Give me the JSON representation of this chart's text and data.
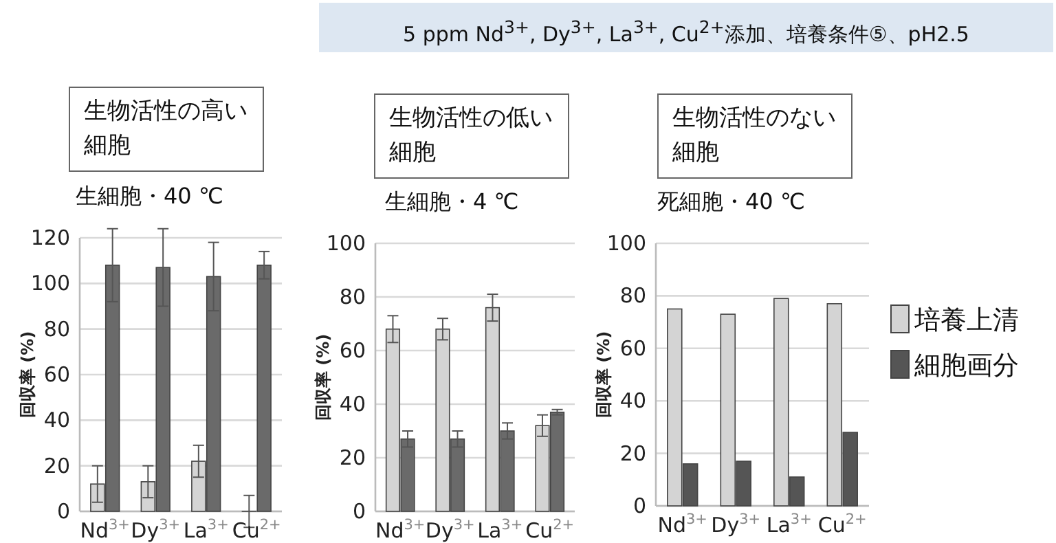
{
  "chart_data": [
    {
      "type": "bar",
      "title": "生物活性の高い細胞",
      "subtitle": "生細胞・40 ℃",
      "ylabel": "回収率 (%)",
      "annotations": [
        "5 ppm Nd$^{3+}$, Dy$^{3+}$, La$^{3+}$, Cu$^{2+}$添加、培養条件⑤、pH2.5"
      ],
      "categories": [
        "Nd$^{3+}$",
        "Dy$^{3+}$",
        "La$^{3+}$",
        "Cu$^{2+}$"
      ],
      "ylim": [
        0,
        120
      ],
      "yticks": [
        0,
        20,
        40,
        60,
        80,
        100,
        120
      ],
      "grid": "y",
      "series": [
        {
          "color": "#d4d4d4",
          "values": [
            12,
            13,
            22,
            0
          ],
          "errors": [
            8,
            7,
            7,
            7
          ]
        },
        {
          "color": "#6a6a6a",
          "values": [
            108,
            107,
            103,
            108
          ],
          "errors": [
            16,
            17,
            15,
            6
          ]
        }
      ]
    },
    {
      "type": "bar",
      "title": "生物活性の低い細胞",
      "subtitle": "生細胞・4 ℃",
      "ylabel": "回収率 (%)",
      "categories": [
        "Nd$^{3+}$",
        "Dy$^{3+}$",
        "La$^{3+}$",
        "Cu$^{2+}$"
      ],
      "ylim": [
        0,
        100
      ],
      "yticks": [
        0,
        20,
        40,
        60,
        80,
        100
      ],
      "grid": "y",
      "series": [
        {
          "color": "#d4d4d4",
          "values": [
            68,
            68,
            76,
            32
          ],
          "errors": [
            5,
            4,
            5,
            4
          ]
        },
        {
          "color": "#6a6a6a",
          "values": [
            27,
            27,
            30,
            37
          ],
          "errors": [
            3,
            3,
            3,
            1
          ]
        }
      ]
    },
    {
      "type": "bar",
      "title": "生物活性のない細胞",
      "subtitle": "死細胞・40 ℃",
      "ylabel": "回収率 (%)",
      "categories": [
        "Nd$^{3+}$",
        "Dy$^{3+}$",
        "La$^{3+}$",
        "Cu$^{2+}$"
      ],
      "ylim": [
        0,
        100
      ],
      "yticks": [
        0,
        20,
        40,
        60,
        80,
        100
      ],
      "grid": "y",
      "legend": "right",
      "series": [
        {
          "name": "培養上清",
          "color": "#d4d4d4",
          "values": [
            75,
            73,
            79,
            77
          ]
        },
        {
          "name": "細胞画分",
          "color": "#555555",
          "values": [
            16,
            17,
            11,
            28
          ]
        }
      ]
    }
  ]
}
